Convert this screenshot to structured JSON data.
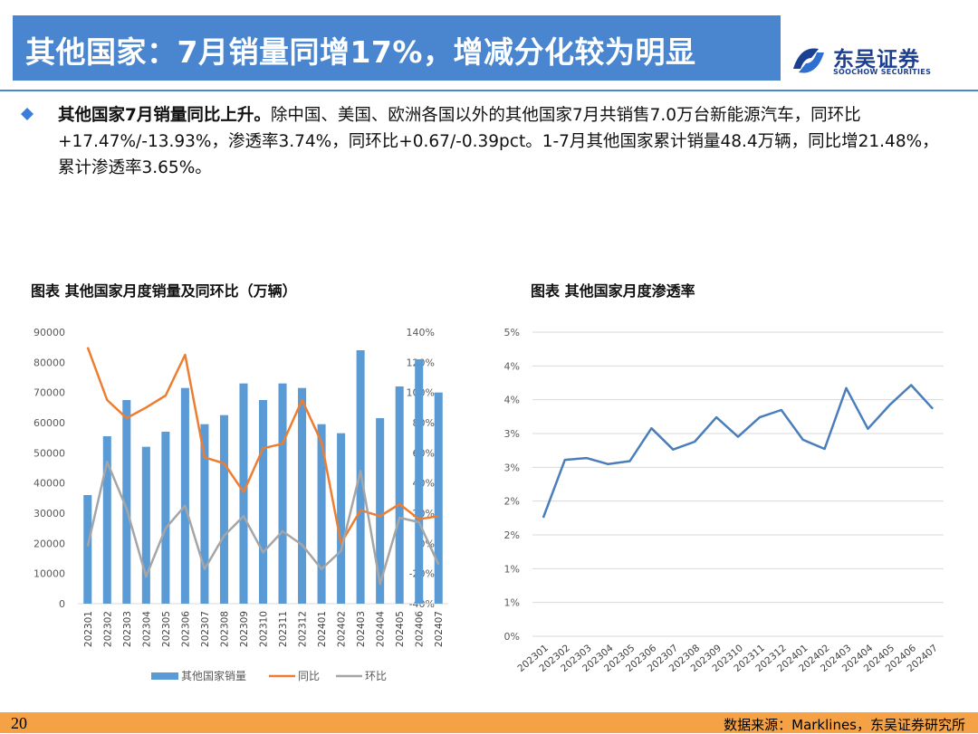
{
  "header": {
    "title": "其他国家：7月销量同增17%，增减分化较为明显",
    "logo_cn": "东吴证券",
    "logo_en": "SOOCHOW SECURITIES"
  },
  "summary": {
    "lead": "其他国家7月销量同比上升。",
    "text": "除中国、美国、欧洲各国以外的其他国家7月共销售7.0万台新能源汽车，同环比+17.47%/-13.93%，渗透率3.74%，同环比+0.67/-0.39pct。1-7月其他国家累计销量48.4万辆，同比增21.48%，累计渗透率3.65%。"
  },
  "chart1_title": "图表  其他国家月度销量及同环比（万辆）",
  "chart2_title": "图表  其他国家月度渗透率",
  "footer": {
    "page": "20",
    "source": "数据来源：Marklines，东吴证券研究所"
  },
  "colors": {
    "bar": "#5b9bd5",
    "yoy": "#ed7d31",
    "mom": "#a5a5a5",
    "line": "#4a7ebb",
    "accent": "#4a86cf",
    "footer": "#f4a245"
  },
  "chart_data": [
    {
      "type": "bar",
      "categories": [
        "202301",
        "202302",
        "202303",
        "202304",
        "202305",
        "202306",
        "202307",
        "202308",
        "202309",
        "202310",
        "202311",
        "202312",
        "202401",
        "202402",
        "202403",
        "202404",
        "202405",
        "202406",
        "202407"
      ],
      "series": [
        {
          "name": "其他国家销量",
          "type": "bar",
          "axis": "left",
          "values": [
            36000,
            55500,
            67500,
            52000,
            57000,
            71500,
            59500,
            62500,
            73000,
            67500,
            73000,
            71500,
            59500,
            56500,
            84000,
            61500,
            72000,
            81000,
            70000
          ]
        },
        {
          "name": "同比",
          "type": "line",
          "axis": "right",
          "values": [
            130,
            95,
            83,
            90,
            98,
            125,
            57,
            53,
            34,
            63,
            66,
            95,
            67,
            0,
            22,
            18,
            26,
            16,
            18
          ]
        },
        {
          "name": "环比",
          "type": "line",
          "axis": "right",
          "values": [
            -2,
            54,
            23,
            -22,
            10,
            25,
            -17,
            5,
            18,
            -6,
            8,
            -1,
            -17,
            -5,
            48,
            -27,
            17,
            14,
            -14
          ]
        }
      ],
      "ylim_left": [
        0,
        90000
      ],
      "yticks_left": [
        "0",
        "10000",
        "20000",
        "30000",
        "40000",
        "50000",
        "60000",
        "70000",
        "80000",
        "90000"
      ],
      "ylim_right": [
        -40,
        140
      ],
      "yticks_right": [
        "-40%",
        "-20%",
        "0%",
        "20%",
        "40%",
        "60%",
        "80%",
        "100%",
        "120%",
        "140%"
      ],
      "legend": [
        "其他国家销量",
        "同比",
        "环比"
      ],
      "legend_position": "bottom"
    },
    {
      "type": "line",
      "categories": [
        "202301",
        "202302",
        "202303",
        "202304",
        "202305",
        "202306",
        "202307",
        "202308",
        "202309",
        "202310",
        "202311",
        "202312",
        "202401",
        "202402",
        "202403",
        "202404",
        "202405",
        "202406",
        "202407"
      ],
      "series": [
        {
          "name": "渗透率",
          "values": [
            1.95,
            2.9,
            2.93,
            2.83,
            2.88,
            3.42,
            3.07,
            3.2,
            3.6,
            3.28,
            3.6,
            3.72,
            3.23,
            3.08,
            4.08,
            3.41,
            3.8,
            4.13,
            3.74
          ]
        }
      ],
      "ylim": [
        0,
        5
      ],
      "yticks": [
        "0%",
        "1%",
        "1%",
        "2%",
        "2%",
        "3%",
        "3%",
        "4%",
        "4%",
        "5%"
      ],
      "legend_position": "none"
    }
  ]
}
